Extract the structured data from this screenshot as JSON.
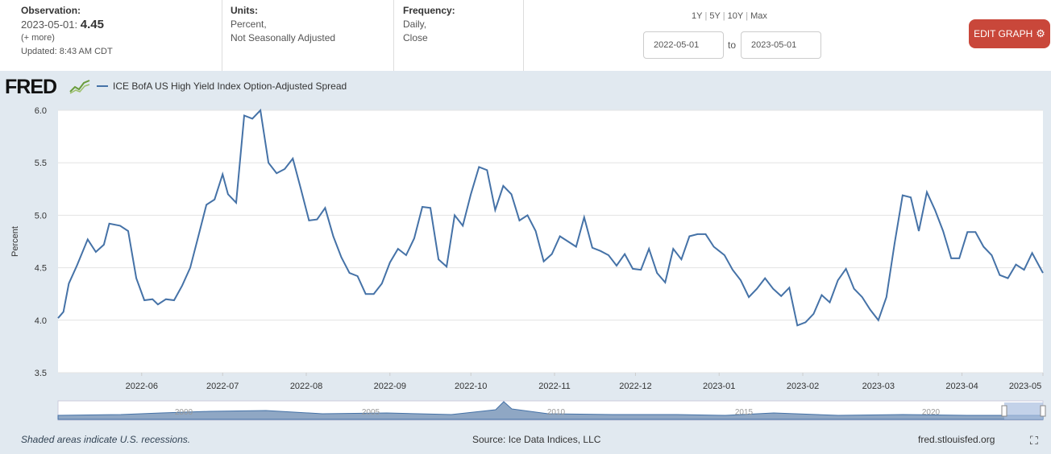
{
  "observation": {
    "label": "Observation:",
    "date": "2023-05-01:",
    "value": "4.45",
    "more": "(+ more)",
    "updated": "Updated: 8:43 AM CDT"
  },
  "units": {
    "label": "Units:",
    "line1": "Percent,",
    "line2": "Not Seasonally Adjusted"
  },
  "frequency": {
    "label": "Frequency:",
    "line1": "Daily,",
    "line2": "Close"
  },
  "range_links": [
    "1Y",
    "5Y",
    "10Y",
    "Max"
  ],
  "dates": {
    "start": "2022-05-01",
    "to": "to",
    "end": "2023-05-01"
  },
  "edit_button": "EDIT GRAPH",
  "logo": "FRED",
  "footer": {
    "recessions": "Shaded areas indicate U.S. recessions.",
    "source": "Source: Ice Data Indices, LLC",
    "site": "fred.stlouisfed.org"
  },
  "colors": {
    "line": "#4572a7",
    "button": "#c9473a",
    "background": "#e1e9f0"
  },
  "chart_data": {
    "type": "line",
    "title": "",
    "xlabel": "",
    "ylabel": "Percent",
    "ylim": [
      3.5,
      6.0
    ],
    "yticks": [
      3.5,
      4.0,
      4.5,
      5.0,
      5.5,
      6.0
    ],
    "xticks": [
      "2022-06",
      "2022-07",
      "2022-08",
      "2022-09",
      "2022-10",
      "2022-11",
      "2022-12",
      "2023-01",
      "2023-02",
      "2023-03",
      "2023-04",
      "2023-05"
    ],
    "grid": true,
    "legend_position": "top-left",
    "navigator_labels": [
      "2000",
      "2005",
      "2010",
      "2015",
      "2020"
    ],
    "series": [
      {
        "name": "ICE BofA US High Yield Index Option-Adjusted Spread",
        "x": [
          "2022-05-01",
          "2022-05-03",
          "2022-05-05",
          "2022-05-08",
          "2022-05-12",
          "2022-05-15",
          "2022-05-18",
          "2022-05-20",
          "2022-05-24",
          "2022-05-27",
          "2022-05-30",
          "2022-06-02",
          "2022-06-05",
          "2022-06-07",
          "2022-06-10",
          "2022-06-13",
          "2022-06-16",
          "2022-06-19",
          "2022-06-22",
          "2022-06-25",
          "2022-06-28",
          "2022-07-01",
          "2022-07-03",
          "2022-07-06",
          "2022-07-09",
          "2022-07-12",
          "2022-07-15",
          "2022-07-18",
          "2022-07-21",
          "2022-07-24",
          "2022-07-27",
          "2022-07-30",
          "2022-08-02",
          "2022-08-05",
          "2022-08-08",
          "2022-08-11",
          "2022-08-14",
          "2022-08-17",
          "2022-08-20",
          "2022-08-23",
          "2022-08-26",
          "2022-08-29",
          "2022-09-01",
          "2022-09-04",
          "2022-09-07",
          "2022-09-10",
          "2022-09-13",
          "2022-09-16",
          "2022-09-19",
          "2022-09-22",
          "2022-09-25",
          "2022-09-28",
          "2022-10-01",
          "2022-10-04",
          "2022-10-07",
          "2022-10-10",
          "2022-10-13",
          "2022-10-16",
          "2022-10-19",
          "2022-10-22",
          "2022-10-25",
          "2022-10-28",
          "2022-10-31",
          "2022-11-03",
          "2022-11-06",
          "2022-11-09",
          "2022-11-12",
          "2022-11-15",
          "2022-11-18",
          "2022-11-21",
          "2022-11-24",
          "2022-11-27",
          "2022-11-30",
          "2022-12-03",
          "2022-12-06",
          "2022-12-09",
          "2022-12-12",
          "2022-12-15",
          "2022-12-18",
          "2022-12-21",
          "2022-12-24",
          "2022-12-27",
          "2022-12-30",
          "2023-01-03",
          "2023-01-06",
          "2023-01-09",
          "2023-01-12",
          "2023-01-15",
          "2023-01-18",
          "2023-01-21",
          "2023-01-24",
          "2023-01-27",
          "2023-01-30",
          "2023-02-02",
          "2023-02-05",
          "2023-02-08",
          "2023-02-11",
          "2023-02-14",
          "2023-02-17",
          "2023-02-20",
          "2023-02-23",
          "2023-02-26",
          "2023-03-01",
          "2023-03-04",
          "2023-03-07",
          "2023-03-10",
          "2023-03-13",
          "2023-03-16",
          "2023-03-19",
          "2023-03-22",
          "2023-03-25",
          "2023-03-28",
          "2023-03-31",
          "2023-04-03",
          "2023-04-06",
          "2023-04-09",
          "2023-04-12",
          "2023-04-15",
          "2023-04-18",
          "2023-04-21",
          "2023-04-24",
          "2023-04-27",
          "2023-05-01"
        ],
        "y": [
          4.02,
          4.08,
          4.35,
          4.52,
          4.77,
          4.65,
          4.72,
          4.92,
          4.9,
          4.85,
          4.4,
          4.19,
          4.2,
          4.15,
          4.2,
          4.19,
          4.33,
          4.5,
          4.8,
          5.1,
          5.15,
          5.39,
          5.2,
          5.12,
          5.95,
          5.92,
          6.0,
          5.5,
          5.4,
          5.44,
          5.54,
          5.25,
          4.95,
          4.96,
          5.07,
          4.8,
          4.6,
          4.45,
          4.42,
          4.25,
          4.25,
          4.35,
          4.55,
          4.68,
          4.62,
          4.78,
          5.08,
          5.07,
          4.58,
          4.51,
          5.0,
          4.9,
          5.2,
          5.46,
          5.43,
          5.05,
          5.28,
          5.2,
          4.95,
          5.0,
          4.85,
          4.56,
          4.63,
          4.8,
          4.75,
          4.7,
          4.98,
          4.69,
          4.66,
          4.62,
          4.52,
          4.63,
          4.49,
          4.48,
          4.68,
          4.45,
          4.36,
          4.68,
          4.58,
          4.8,
          4.82,
          4.82,
          4.7,
          4.62,
          4.48,
          4.38,
          4.22,
          4.3,
          4.4,
          4.3,
          4.23,
          4.31,
          3.95,
          3.98,
          4.06,
          4.24,
          4.17,
          4.38,
          4.49,
          4.3,
          4.22,
          4.1,
          4.0,
          4.22,
          4.73,
          5.19,
          5.17,
          4.85,
          5.22,
          5.05,
          4.85,
          4.59,
          4.59,
          4.84,
          4.84,
          4.7,
          4.62,
          4.43,
          4.4,
          4.53,
          4.48,
          4.64,
          4.45
        ]
      }
    ]
  }
}
